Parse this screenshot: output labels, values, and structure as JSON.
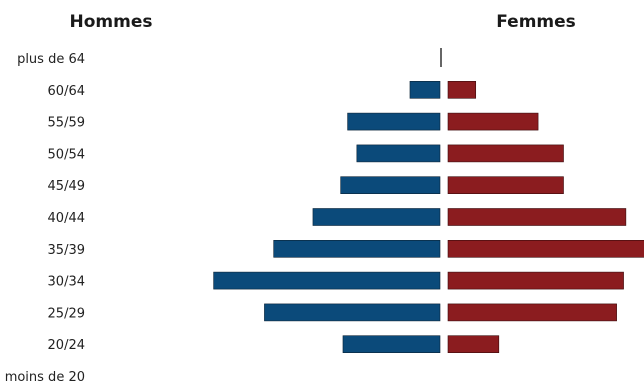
{
  "chart_data": {
    "type": "bar",
    "subtype": "population-pyramid",
    "headers": {
      "left": "Hommes",
      "right": "Femmes"
    },
    "categories": [
      "plus de 64",
      "60/64",
      "55/59",
      "50/54",
      "45/49",
      "40/44",
      "35/39",
      "30/34",
      "25/29",
      "20/24",
      "moins de 20"
    ],
    "series": [
      {
        "name": "Hommes",
        "color": "#0b4a7a",
        "values": [
          0,
          1.3,
          4.0,
          3.6,
          4.3,
          5.5,
          7.2,
          9.8,
          7.6,
          4.2,
          0
        ]
      },
      {
        "name": "Femmes",
        "color": "#8b1c1f",
        "values": [
          0,
          1.2,
          3.9,
          5.0,
          5.0,
          7.7,
          8.5,
          7.6,
          7.3,
          2.2,
          0
        ]
      }
    ],
    "axis": {
      "visible": false
    },
    "grid": false,
    "legend": "none"
  }
}
